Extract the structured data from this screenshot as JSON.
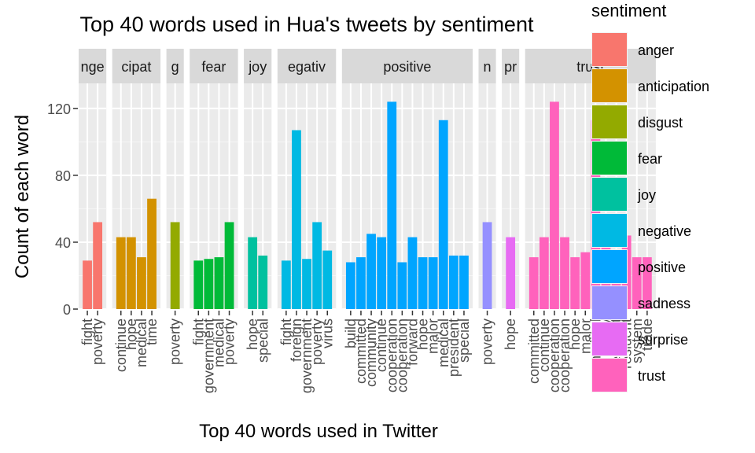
{
  "chart_data": {
    "type": "bar",
    "title": "Top 40 words used in Hua's tweets by sentiment",
    "xlabel": "Top 40 words used in Twitter",
    "ylabel": "Count of each word",
    "ylim": [
      0,
      135
    ],
    "yticks": [
      0,
      40,
      80,
      120
    ],
    "grid": true,
    "facet_strip_labels": [
      "nge",
      "cipat",
      "g",
      "fear",
      "joy",
      "egativ",
      "positive",
      "n",
      "pr",
      "trust"
    ],
    "legend": {
      "title": "sentiment",
      "position": "right"
    },
    "series": [
      {
        "name": "anger",
        "color": "#F8766D",
        "categories": [
          "fight",
          "poverty"
        ],
        "values": [
          29,
          52
        ]
      },
      {
        "name": "anticipation",
        "color": "#D39200",
        "categories": [
          "continue",
          "hope",
          "medical",
          "time"
        ],
        "values": [
          43,
          43,
          31,
          66
        ]
      },
      {
        "name": "disgust",
        "color": "#93AA00",
        "categories": [
          "poverty"
        ],
        "values": [
          52
        ]
      },
      {
        "name": "fear",
        "color": "#00BA38",
        "categories": [
          "fight",
          "government",
          "medical",
          "poverty"
        ],
        "values": [
          29,
          30,
          31,
          52
        ]
      },
      {
        "name": "joy",
        "color": "#00C19F",
        "categories": [
          "hope",
          "special"
        ],
        "values": [
          43,
          32
        ]
      },
      {
        "name": "negative",
        "color": "#00B9E3",
        "categories": [
          "fight",
          "foreign",
          "government",
          "poverty",
          "virus"
        ],
        "values": [
          29,
          107,
          30,
          52,
          35
        ]
      },
      {
        "name": "positive",
        "color": "#619CFF",
        "categories": [
          "build",
          "committed",
          "community",
          "continue",
          "cooperation",
          "cooperation",
          "forward",
          "hope",
          "major",
          "medical",
          "president",
          "special"
        ],
        "values": [
          28,
          31,
          45,
          43,
          124,
          28,
          43,
          31,
          31,
          113,
          32,
          32
        ]
      },
      {
        "name": "sadness",
        "color": "#DB72FB",
        "categories": [
          "poverty"
        ],
        "values": [
          52
        ]
      },
      {
        "name": "surprise",
        "color": "#FF61C3",
        "categories": [
          "hope"
        ],
        "values": [
          43
        ]
      },
      {
        "name": "trust",
        "color": "#FF61C3",
        "categories": [
          "committed",
          "continue",
          "cooperation",
          "cooperation",
          "hope",
          "major",
          "medical",
          "policy",
          "president",
          "resident",
          "system",
          "trade"
        ],
        "values": [
          31,
          43,
          124,
          43,
          31,
          34,
          113,
          44,
          31,
          44,
          31,
          31
        ]
      }
    ],
    "legend_entries": [
      {
        "name": "anger",
        "color": "#F8766D"
      },
      {
        "name": "anticipation",
        "color": "#D39200"
      },
      {
        "name": "disgust",
        "color": "#93AA00"
      },
      {
        "name": "fear",
        "color": "#00BA38"
      },
      {
        "name": "joy",
        "color": "#00C19F"
      },
      {
        "name": "negative",
        "color": "#00B9E3"
      },
      {
        "name": "positive",
        "color": "#00A5FF"
      },
      {
        "name": "sadness",
        "color": "#9590FF"
      },
      {
        "name": "surprise",
        "color": "#E76BF3"
      },
      {
        "name": "trust",
        "color": "#FF62BC"
      }
    ]
  }
}
